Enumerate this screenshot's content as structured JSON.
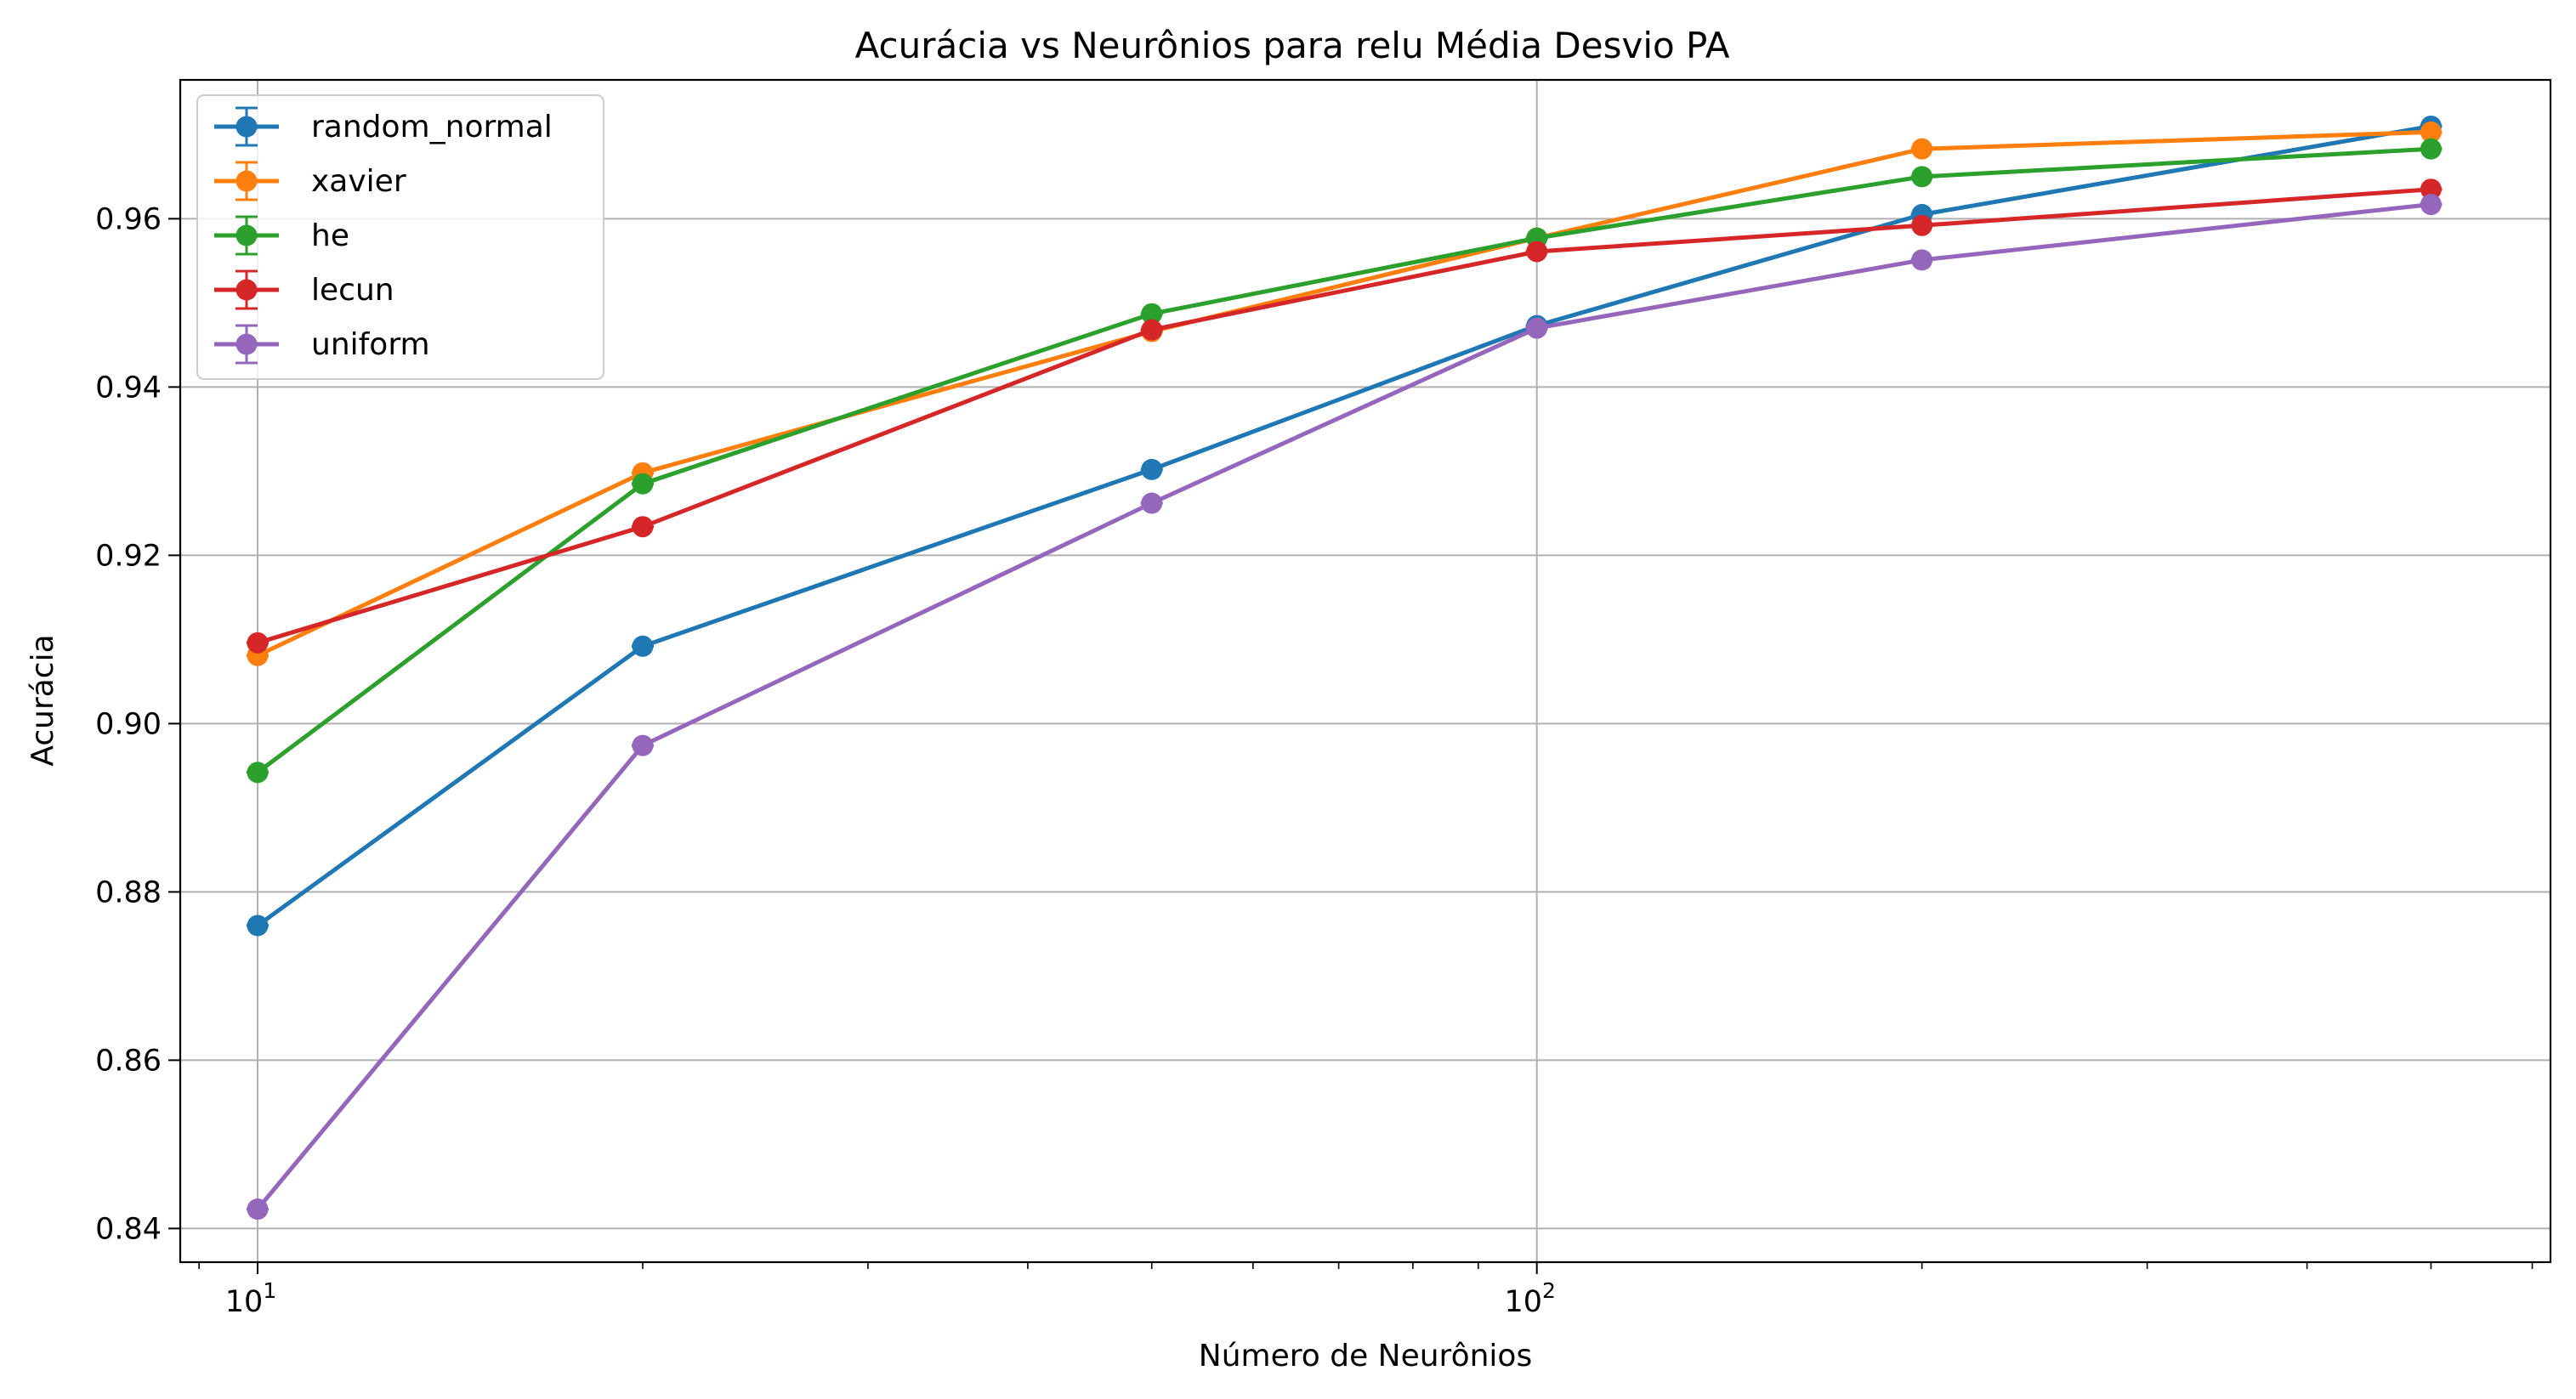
{
  "chart_data": {
    "type": "line",
    "title": "Acurácia vs Neurônios para relu Média Desvio PA",
    "xlabel": "Número de Neurônios",
    "ylabel": "Acurácia",
    "x_scale": "log",
    "x": [
      10,
      20,
      50,
      100,
      200,
      500
    ],
    "xlim": [
      8.7,
      620
    ],
    "ylim": [
      0.836,
      0.9765
    ],
    "x_ticks": [
      {
        "value": 10,
        "base": "10",
        "exp": "1"
      },
      {
        "value": 100,
        "base": "10",
        "exp": "2"
      }
    ],
    "y_ticks": [
      0.84,
      0.86,
      0.88,
      0.9,
      0.92,
      0.94,
      0.96
    ],
    "y_tick_labels": [
      "0.84",
      "0.86",
      "0.88",
      "0.90",
      "0.92",
      "0.94",
      "0.96"
    ],
    "grid": true,
    "error_bars": true,
    "legend_position": "upper-left",
    "series": [
      {
        "name": "random_normal",
        "color": "#1f77b4",
        "values": [
          0.876,
          0.9092,
          0.9302,
          0.9473,
          0.9605,
          0.971
        ]
      },
      {
        "name": "xavier",
        "color": "#ff7f0e",
        "values": [
          0.9081,
          0.9298,
          0.9466,
          0.9577,
          0.9683,
          0.9703
        ]
      },
      {
        "name": "he",
        "color": "#2ca02c",
        "values": [
          0.8942,
          0.9285,
          0.9487,
          0.9577,
          0.965,
          0.9683
        ]
      },
      {
        "name": "lecun",
        "color": "#d62728",
        "values": [
          0.9096,
          0.9234,
          0.9468,
          0.9561,
          0.9592,
          0.9635
        ]
      },
      {
        "name": "uniform",
        "color": "#9467bd",
        "values": [
          0.8423,
          0.8974,
          0.9262,
          0.947,
          0.9551,
          0.9617
        ]
      }
    ]
  }
}
